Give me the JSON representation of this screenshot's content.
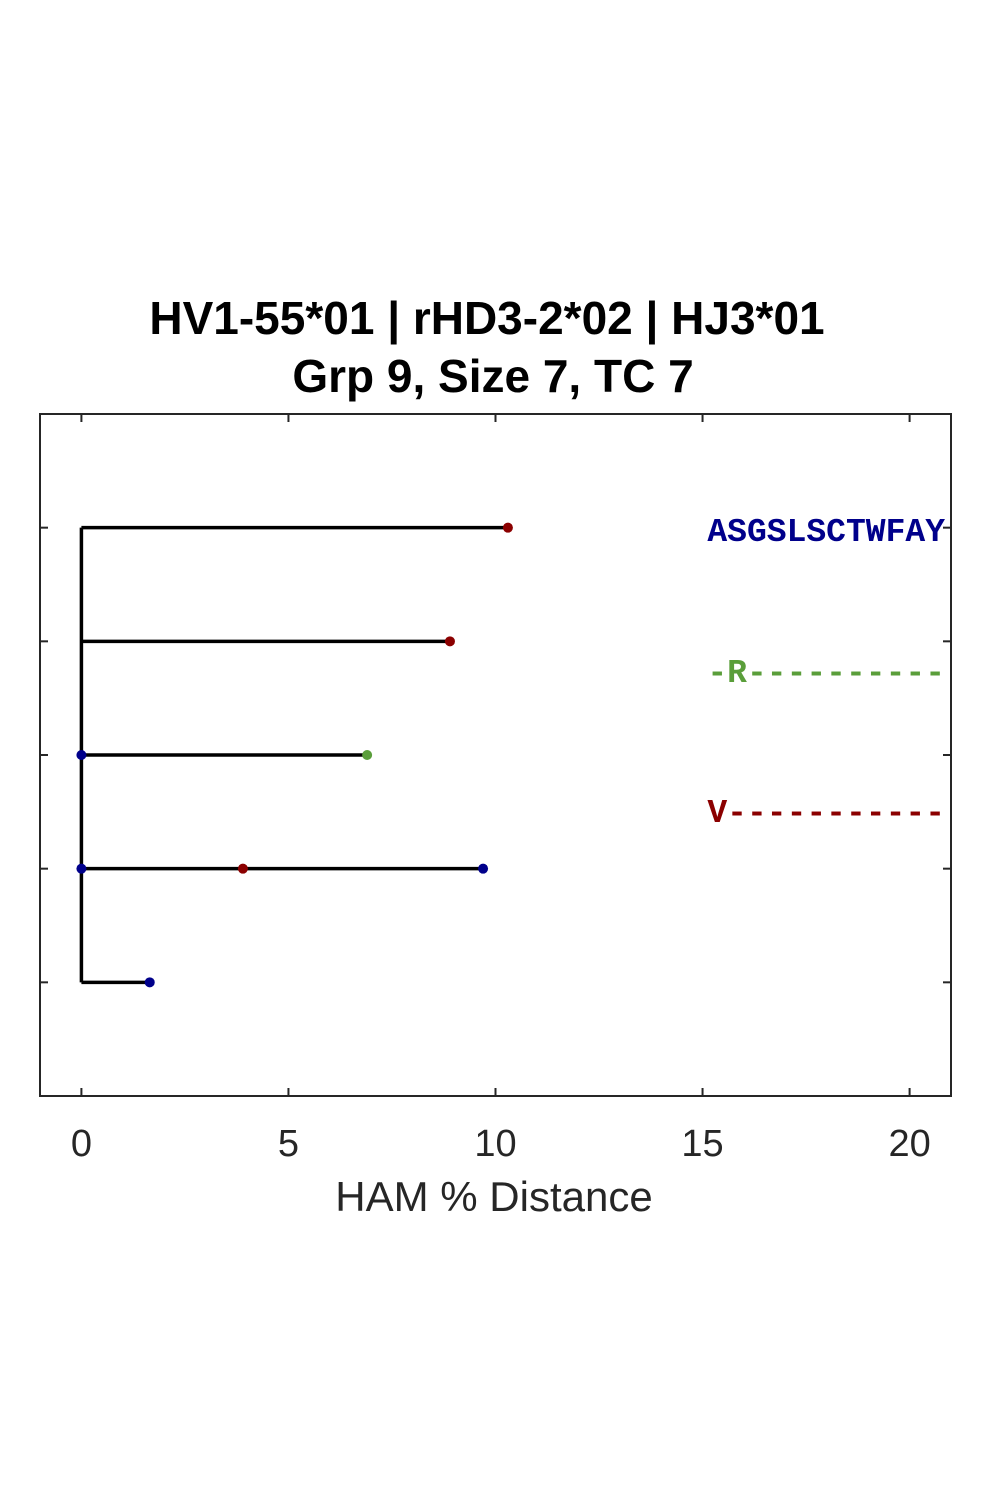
{
  "chart_data": {
    "type": "dendrogram",
    "title": [
      "HV1-55*01 | rHD3-2*02 | HJ3*01",
      "Grp 9, Size 7, TC 7"
    ],
    "xlabel": "HAM % Distance",
    "ylabel": "",
    "xlim": [
      -1,
      21
    ],
    "ylim": [
      0,
      6
    ],
    "xticks": [
      0,
      5,
      10,
      15,
      20
    ],
    "xtick_labels": [
      "0",
      "5",
      "10",
      "15",
      "20"
    ],
    "yticks": [
      1,
      2,
      3,
      4,
      5
    ],
    "grid": false,
    "trunk": {
      "x": 0,
      "y_from": 1,
      "y_to": 5
    },
    "branches": [
      {
        "y": 5,
        "x_start": 0,
        "x_end": 10.3
      },
      {
        "y": 4,
        "x_start": 0,
        "x_end": 8.9
      },
      {
        "y": 3,
        "x_start": 0,
        "x_end": 6.9
      },
      {
        "y": 2,
        "x_start": 0,
        "x_end": 9.7
      },
      {
        "y": 1,
        "x_start": 0,
        "x_end": 1.65
      }
    ],
    "points": [
      {
        "x": 10.3,
        "y": 5,
        "color": "#8b0000"
      },
      {
        "x": 8.9,
        "y": 4,
        "color": "#8b0000"
      },
      {
        "x": 6.9,
        "y": 3,
        "color": "#5a9e3a"
      },
      {
        "x": 0,
        "y": 3,
        "color": "#00008b"
      },
      {
        "x": 0,
        "y": 2,
        "color": "#00008b"
      },
      {
        "x": 3.9,
        "y": 2,
        "color": "#8b0000"
      },
      {
        "x": 9.7,
        "y": 2,
        "color": "#00008b"
      },
      {
        "x": 1.65,
        "y": 1,
        "color": "#00008b"
      }
    ],
    "sequences": [
      {
        "text": "ASGSLSCTWFAY",
        "color": "#00008b"
      },
      {
        "text": "-R----------",
        "color": "#5a9e3a"
      },
      {
        "text": "V-----------",
        "color": "#8b0000"
      }
    ]
  }
}
